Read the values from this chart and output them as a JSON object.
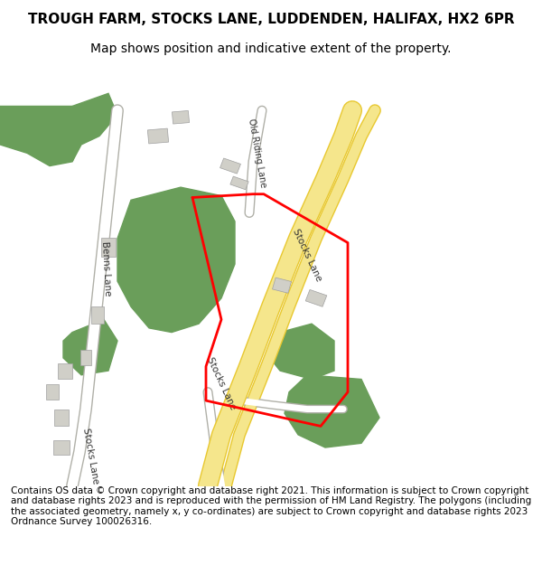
{
  "title": "TROUGH FARM, STOCKS LANE, LUDDENDEN, HALIFAX, HX2 6PR",
  "subtitle": "Map shows position and indicative extent of the property.",
  "footer": "Contains OS data © Crown copyright and database right 2021. This information is subject to Crown copyright and database rights 2023 and is reproduced with the permission of HM Land Registry. The polygons (including the associated geometry, namely x, y co-ordinates) are subject to Crown copyright and database rights 2023 Ordnance Survey 100026316.",
  "bg_color": "#ffffff",
  "map_bg": "#f5f5f0",
  "road_yellow": "#f5e68c",
  "road_yellow_border": "#e8c830",
  "road_white": "#ffffff",
  "road_gray": "#d0cfc8",
  "road_gray_border": "#b0b0a8",
  "green_color": "#6a9e5a",
  "building_color": "#d0cfc8",
  "red_boundary": "#ff0000",
  "title_fontsize": 11,
  "subtitle_fontsize": 10,
  "footer_fontsize": 7.5
}
